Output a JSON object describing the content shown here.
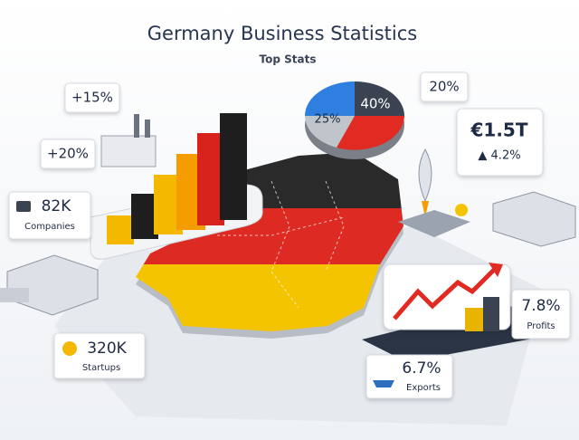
{
  "header": {
    "title": "Germany Business Statistics",
    "subtitle": "Top Stats"
  },
  "callouts": {
    "growth_a": "+15%",
    "growth_b": "+20%",
    "companies": {
      "value": "82K",
      "label": "Companies"
    },
    "startups": {
      "value": "320K",
      "label": "Startups"
    },
    "share": "20%",
    "gdp": {
      "value": "€1.5T",
      "label": "▲ 4.2%"
    },
    "profits": {
      "value": "7.8%",
      "label": "Profits"
    },
    "exports": {
      "value": "6.7%",
      "label": "Exports"
    }
  },
  "pie": {
    "labels": [
      "40%",
      "25%"
    ]
  }
}
